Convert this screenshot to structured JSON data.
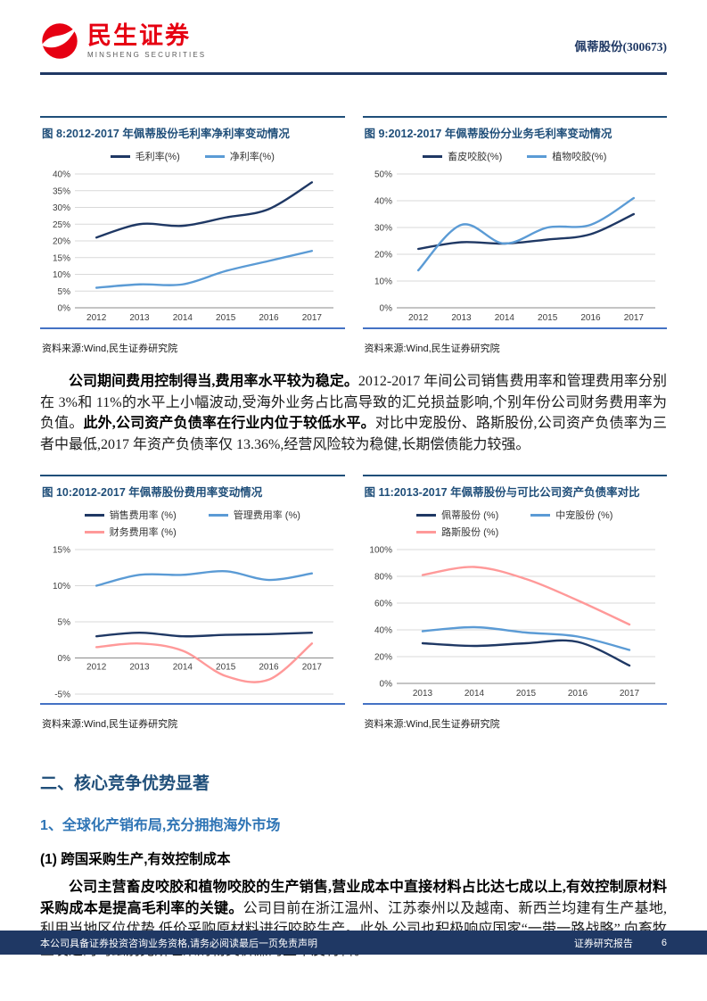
{
  "header": {
    "logo_cn": "民生证券",
    "logo_en": "MINSHENG SECURITIES",
    "stock": "佩蒂股份(300673)"
  },
  "charts": [
    {
      "type": "line",
      "title": "图 8:2012-2017 年佩蒂股份毛利率净利率变动情况",
      "source": "资料来源:Wind,民生证券研究院",
      "categories": [
        "2012",
        "2013",
        "2014",
        "2015",
        "2016",
        "2017"
      ],
      "y_min": 0,
      "y_max": 40,
      "y_step": 5,
      "y_suffix": "%",
      "x_labels_at_zero": false,
      "grid": true,
      "legend_position": "top",
      "series": [
        {
          "name": "毛利率(%)",
          "color": "#1F3864",
          "values": [
            21,
            25,
            24.5,
            27,
            29.5,
            37.5
          ]
        },
        {
          "name": "净利率(%)",
          "color": "#5B9BD5",
          "values": [
            6,
            7,
            7,
            11,
            14,
            17
          ]
        }
      ]
    },
    {
      "type": "line",
      "title": "图 9:2012-2017 年佩蒂股份分业务毛利率变动情况",
      "source": "资料来源:Wind,民生证券研究院",
      "categories": [
        "2012",
        "2013",
        "2014",
        "2015",
        "2016",
        "2017"
      ],
      "y_min": 0,
      "y_max": 50,
      "y_step": 10,
      "y_suffix": "%",
      "x_labels_at_zero": false,
      "grid": true,
      "legend_position": "top",
      "series": [
        {
          "name": "畜皮咬胶(%)",
          "color": "#1F3864",
          "values": [
            22,
            24.5,
            24,
            25.5,
            27.5,
            35
          ]
        },
        {
          "name": "植物咬胶(%)",
          "color": "#5B9BD5",
          "values": [
            14,
            31,
            24,
            30,
            31,
            41
          ]
        }
      ]
    },
    {
      "type": "line",
      "title": "图 10:2012-2017 年佩蒂股份费用率变动情况",
      "source": "资料来源:Wind,民生证券研究院",
      "categories": [
        "2012",
        "2013",
        "2014",
        "2015",
        "2016",
        "2017"
      ],
      "y_min": -5,
      "y_max": 15,
      "y_step": 5,
      "y_suffix": "%",
      "x_labels_at_zero": true,
      "grid": true,
      "legend_position": "top",
      "series": [
        {
          "name": "销售费用率 (%)",
          "color": "#1F3864",
          "values": [
            3,
            3.5,
            3,
            3.2,
            3.3,
            3.5
          ]
        },
        {
          "name": "管理费用率 (%)",
          "color": "#5B9BD5",
          "values": [
            10,
            11.5,
            11.5,
            12,
            10.8,
            11.7
          ]
        },
        {
          "name": "财务费用率 (%)",
          "color": "#FF9999",
          "values": [
            1.5,
            2,
            1,
            -2.5,
            -3,
            2
          ]
        }
      ]
    },
    {
      "type": "line",
      "title": "图 11:2013-2017 年佩蒂股份与可比公司资产负债率对比",
      "source": "资料来源:Wind,民生证券研究院",
      "categories": [
        "2013",
        "2014",
        "2015",
        "2016",
        "2017"
      ],
      "y_min": 0,
      "y_max": 100,
      "y_step": 20,
      "y_suffix": "%",
      "x_labels_at_zero": false,
      "grid": true,
      "legend_position": "top",
      "series": [
        {
          "name": "佩蒂股份 (%)",
          "color": "#1F3864",
          "values": [
            30,
            28,
            30,
            31,
            13.36
          ]
        },
        {
          "name": "中宠股份 (%)",
          "color": "#5B9BD5",
          "values": [
            39,
            42,
            38,
            35,
            25
          ]
        },
        {
          "name": "路斯股份 (%)",
          "color": "#FF9999",
          "values": [
            81,
            87,
            78,
            62,
            44
          ]
        }
      ]
    }
  ],
  "paragraphs": {
    "p1": {
      "s1": "公司期间费用控制得当,费用率水平较为稳定。",
      "s2": "2012-2017 年间公司销售费用率和管理费用率分别在 3%和 11%的水平上小幅波动,受海外业务占比高导致的汇兑损益影响,个别年份公司财务费用率为负值。",
      "s3": "此外,公司资产负债率在行业内位于较低水平。",
      "s4": "对比中宠股份、路斯股份,公司资产负债率为三者中最低,2017 年资产负债率仅 13.36%,经营风险较为稳健,长期偿债能力较强。"
    },
    "p2": {
      "s1": "公司主营畜皮咬胶和植物咬胶的生产销售,营业成本中直接材料占比达七成以上,有效控制原材料采购成本是提高毛利率的关键。",
      "s2": "公司目前在浙江温州、江苏泰州以及越南、新西兰均建有生产基地,利用当地区位优势,低价采购原材料进行咬胶生产。此外,公司也积极响应国家“一带一路战略”,向畜牧业发达的乌兹别克斯坦采购物美价廉的生牛皮材料。"
    }
  },
  "sections": {
    "h1": "二、核心竞争优势显著",
    "h2": "1、全球化产销布局,充分拥抱海外市场",
    "h3": "(1) 跨国采购生产,有效控制成本"
  },
  "footer": {
    "left": "本公司具备证券投资咨询业务资格,请务必阅读最后一页免责声明",
    "right": "证券研究报告",
    "page": "6"
  },
  "colors": {
    "navy": "#1F3864",
    "title_blue": "#1F4E79",
    "accent_blue": "#4472C4",
    "light_blue": "#5B9BD5",
    "pink": "#FF9999",
    "logo_red": "#E60012"
  }
}
